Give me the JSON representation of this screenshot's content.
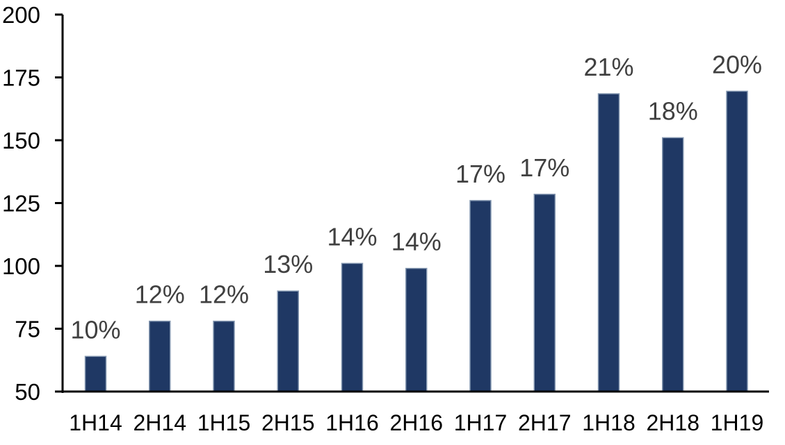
{
  "chart_data": {
    "type": "bar",
    "title": "",
    "xlabel": "",
    "ylabel": "",
    "categories": [
      "1H14",
      "2H14",
      "1H15",
      "2H15",
      "1H16",
      "2H16",
      "1H17",
      "2H17",
      "1H18",
      "2H18",
      "1H19"
    ],
    "values": [
      64,
      78,
      78,
      90,
      101,
      99,
      126,
      128.5,
      168.5,
      151,
      169.5
    ],
    "bar_labels": [
      "10%",
      "12%",
      "12%",
      "13%",
      "14%",
      "14%",
      "17%",
      "17%",
      "21%",
      "18%",
      "20%"
    ],
    "ylim": [
      50,
      200
    ],
    "yticks": [
      50,
      75,
      100,
      125,
      150,
      175,
      200
    ],
    "grid": false,
    "legend": false,
    "colors": {
      "bar_fill": "#1F3864",
      "bar_border": "#8497B0",
      "data_label": "#404040",
      "axis_line": "#000000",
      "axis_text": "#000000",
      "background": "#FFFFFF"
    }
  }
}
